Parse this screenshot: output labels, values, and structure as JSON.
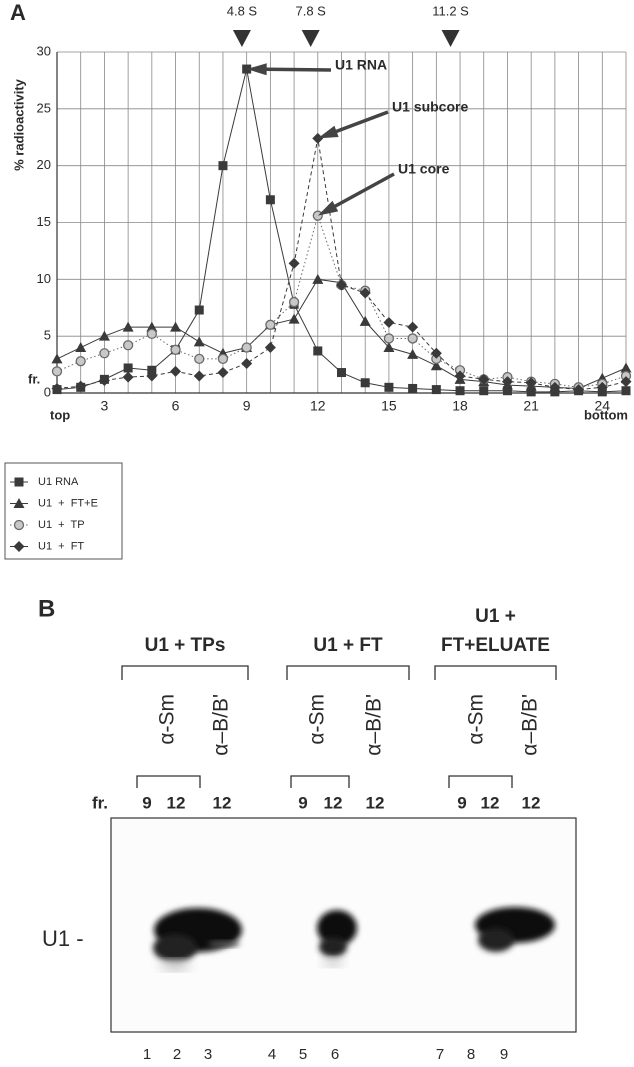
{
  "chart_data": {
    "type": "line",
    "panel_label": "A",
    "ylabel": "% radioactivity",
    "xlabel": "fr.",
    "x_start_label": "top",
    "x_end_label": "bottom",
    "x": [
      1,
      2,
      3,
      4,
      5,
      6,
      7,
      8,
      9,
      10,
      11,
      12,
      13,
      14,
      15,
      16,
      17,
      18,
      19,
      20,
      21,
      22,
      23,
      24,
      25
    ],
    "xlim": [
      1,
      25
    ],
    "xticks": [
      3,
      6,
      9,
      12,
      15,
      18,
      21,
      24
    ],
    "ylim": [
      0,
      30
    ],
    "yticks": [
      0,
      5,
      10,
      15,
      20,
      25,
      30
    ],
    "grid": true,
    "markers": [
      {
        "label": "4.8 S",
        "x": 8.8
      },
      {
        "label": "7.8 S",
        "x": 11.7
      },
      {
        "label": "11.2 S",
        "x": 17.6
      }
    ],
    "annotations": [
      "U1 RNA",
      "U1 subcore",
      "U1 core"
    ],
    "series": [
      {
        "name": "U1 RNA",
        "marker": "square",
        "color": "#3a3a3a",
        "dash": "solid",
        "values": [
          0.3,
          0.5,
          1.2,
          2.2,
          2,
          3.8,
          7.3,
          20,
          28.5,
          17,
          7.8,
          3.7,
          1.8,
          0.9,
          0.5,
          0.4,
          0.3,
          0.2,
          0.2,
          0.2,
          0.1,
          0.1,
          0.2,
          0.1,
          0.2
        ]
      },
      {
        "name": "U1  +  FT+E",
        "marker": "triangle",
        "color": "#3a3a3a",
        "dash": "solid",
        "values": [
          3,
          4,
          5,
          5.8,
          5.8,
          5.8,
          4.5,
          3.5,
          4,
          6,
          6.5,
          10,
          9.7,
          6.3,
          4,
          3.4,
          2.4,
          1.2,
          1,
          0.7,
          0.6,
          0.5,
          0.4,
          1.3,
          2.2
        ]
      },
      {
        "name": "U1  +  TP",
        "marker": "circle",
        "color": "#6a6a6a",
        "dash": "dotted",
        "values": [
          1.9,
          2.8,
          3.5,
          4.2,
          5.2,
          3.8,
          3,
          3,
          4,
          6,
          8,
          15.6,
          9.5,
          9,
          4.8,
          4.8,
          3,
          2,
          1.2,
          1.4,
          1,
          0.8,
          0.5,
          0.8,
          1.5
        ]
      },
      {
        "name": "U1  +  FT",
        "marker": "diamond",
        "color": "#3a3a3a",
        "dash": "dashed",
        "values": [
          0.4,
          0.6,
          1.1,
          1.4,
          1.5,
          1.9,
          1.5,
          1.8,
          2.6,
          4,
          11.4,
          22.4,
          9.5,
          8.8,
          6.2,
          5.8,
          3.5,
          1.5,
          1.2,
          1,
          0.9,
          0.5,
          0.3,
          0.5,
          1
        ]
      }
    ]
  },
  "panel_b": {
    "panel_label": "B",
    "fraction_label": "fr.",
    "band_label": "U1 -",
    "groups": [
      {
        "title_lines": [
          "U1 + TPs"
        ],
        "antibodies": [
          "α-Sm",
          "α–B/B'"
        ],
        "fractions": [
          "9",
          "12",
          "12"
        ]
      },
      {
        "title_lines": [
          "U1 + FT"
        ],
        "antibodies": [
          "α-Sm",
          "α–B/B'"
        ],
        "fractions": [
          "9",
          "12",
          "12"
        ]
      },
      {
        "title_lines": [
          "U1 +",
          "FT+ELUATE"
        ],
        "antibodies": [
          "α-Sm",
          "α–B/B'"
        ],
        "fractions": [
          "9",
          "12",
          "12"
        ]
      }
    ],
    "lanes": [
      "1",
      "2",
      "3",
      "4",
      "5",
      "6",
      "7",
      "8",
      "9"
    ]
  }
}
